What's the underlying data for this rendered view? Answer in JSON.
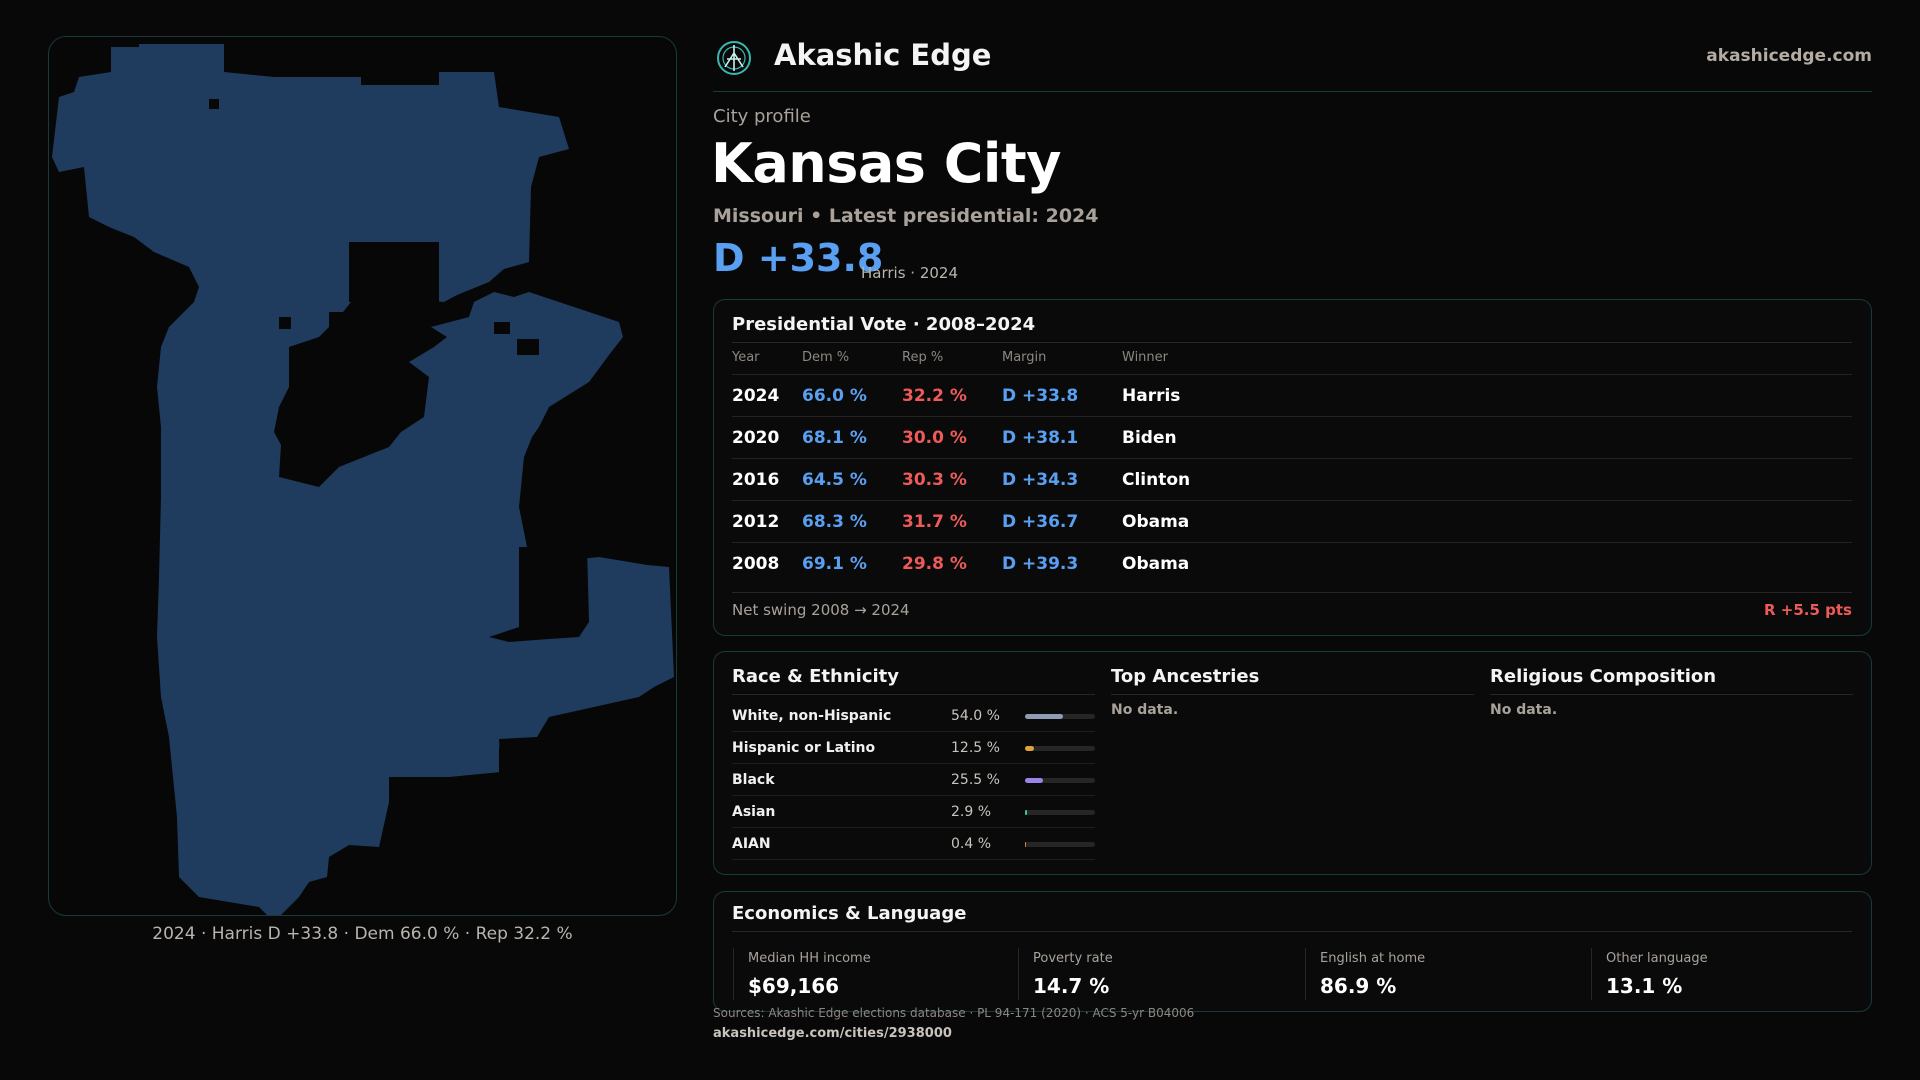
{
  "brand": {
    "name": "Akashic Edge",
    "site": "akashicedge.com"
  },
  "profile": {
    "kicker": "City profile",
    "city": "Kansas City",
    "subtitle": "Missouri • Latest presidential: 2024",
    "margin": "D +33.8",
    "margin_note": "Harris · 2024"
  },
  "map": {
    "caption": "2024 · Harris D +33.8 · Dem 66.0 % · Rep 32.2 %",
    "fill_color": "#1f3c5e"
  },
  "vote_table": {
    "title": "Presidential Vote · 2008–2024",
    "headers": [
      "Year",
      "Dem %",
      "Rep %",
      "Margin",
      "Winner"
    ],
    "rows": [
      {
        "year": "2024",
        "dem": "66.0 %",
        "rep": "32.2 %",
        "margin": "D +33.8",
        "winner": "Harris"
      },
      {
        "year": "2020",
        "dem": "68.1 %",
        "rep": "30.0 %",
        "margin": "D +38.1",
        "winner": "Biden"
      },
      {
        "year": "2016",
        "dem": "64.5 %",
        "rep": "30.3 %",
        "margin": "D +34.3",
        "winner": "Clinton"
      },
      {
        "year": "2012",
        "dem": "68.3 %",
        "rep": "31.7 %",
        "margin": "D +36.7",
        "winner": "Obama"
      },
      {
        "year": "2008",
        "dem": "69.1 %",
        "rep": "29.8 %",
        "margin": "D +39.3",
        "winner": "Obama"
      }
    ],
    "swing_label": "Net swing 2008 → 2024",
    "swing_value": "R +5.5 pts"
  },
  "race": {
    "title": "Race & Ethnicity",
    "items": [
      {
        "label": "White, non-Hispanic",
        "pct": "54.0 %",
        "share": 0.54,
        "color": "#8f9bb3"
      },
      {
        "label": "Hispanic or Latino",
        "pct": "12.5 %",
        "share": 0.125,
        "color": "#e0a23a"
      },
      {
        "label": "Black",
        "pct": "25.5 %",
        "share": 0.255,
        "color": "#9b84e8"
      },
      {
        "label": "Asian",
        "pct": "2.9 %",
        "share": 0.029,
        "color": "#3bc9a0"
      },
      {
        "label": "AIAN",
        "pct": "0.4 %",
        "share": 0.004,
        "color": "#c08a5a"
      }
    ]
  },
  "ancestries": {
    "title": "Top Ancestries",
    "empty": "No data."
  },
  "religion": {
    "title": "Religious Composition",
    "empty": "No data."
  },
  "economics": {
    "title": "Economics & Language",
    "stats": [
      {
        "label": "Median HH income",
        "value": "$69,166"
      },
      {
        "label": "Poverty rate",
        "value": "14.7 %"
      },
      {
        "label": "English at home",
        "value": "86.9 %"
      },
      {
        "label": "Other language",
        "value": "13.1 %"
      }
    ]
  },
  "footer": {
    "sources": "Sources: Akashic Edge elections database · PL 94-171 (2020) · ACS 5-yr B04006",
    "permalink": "akashicedge.com/cities/2938000"
  }
}
